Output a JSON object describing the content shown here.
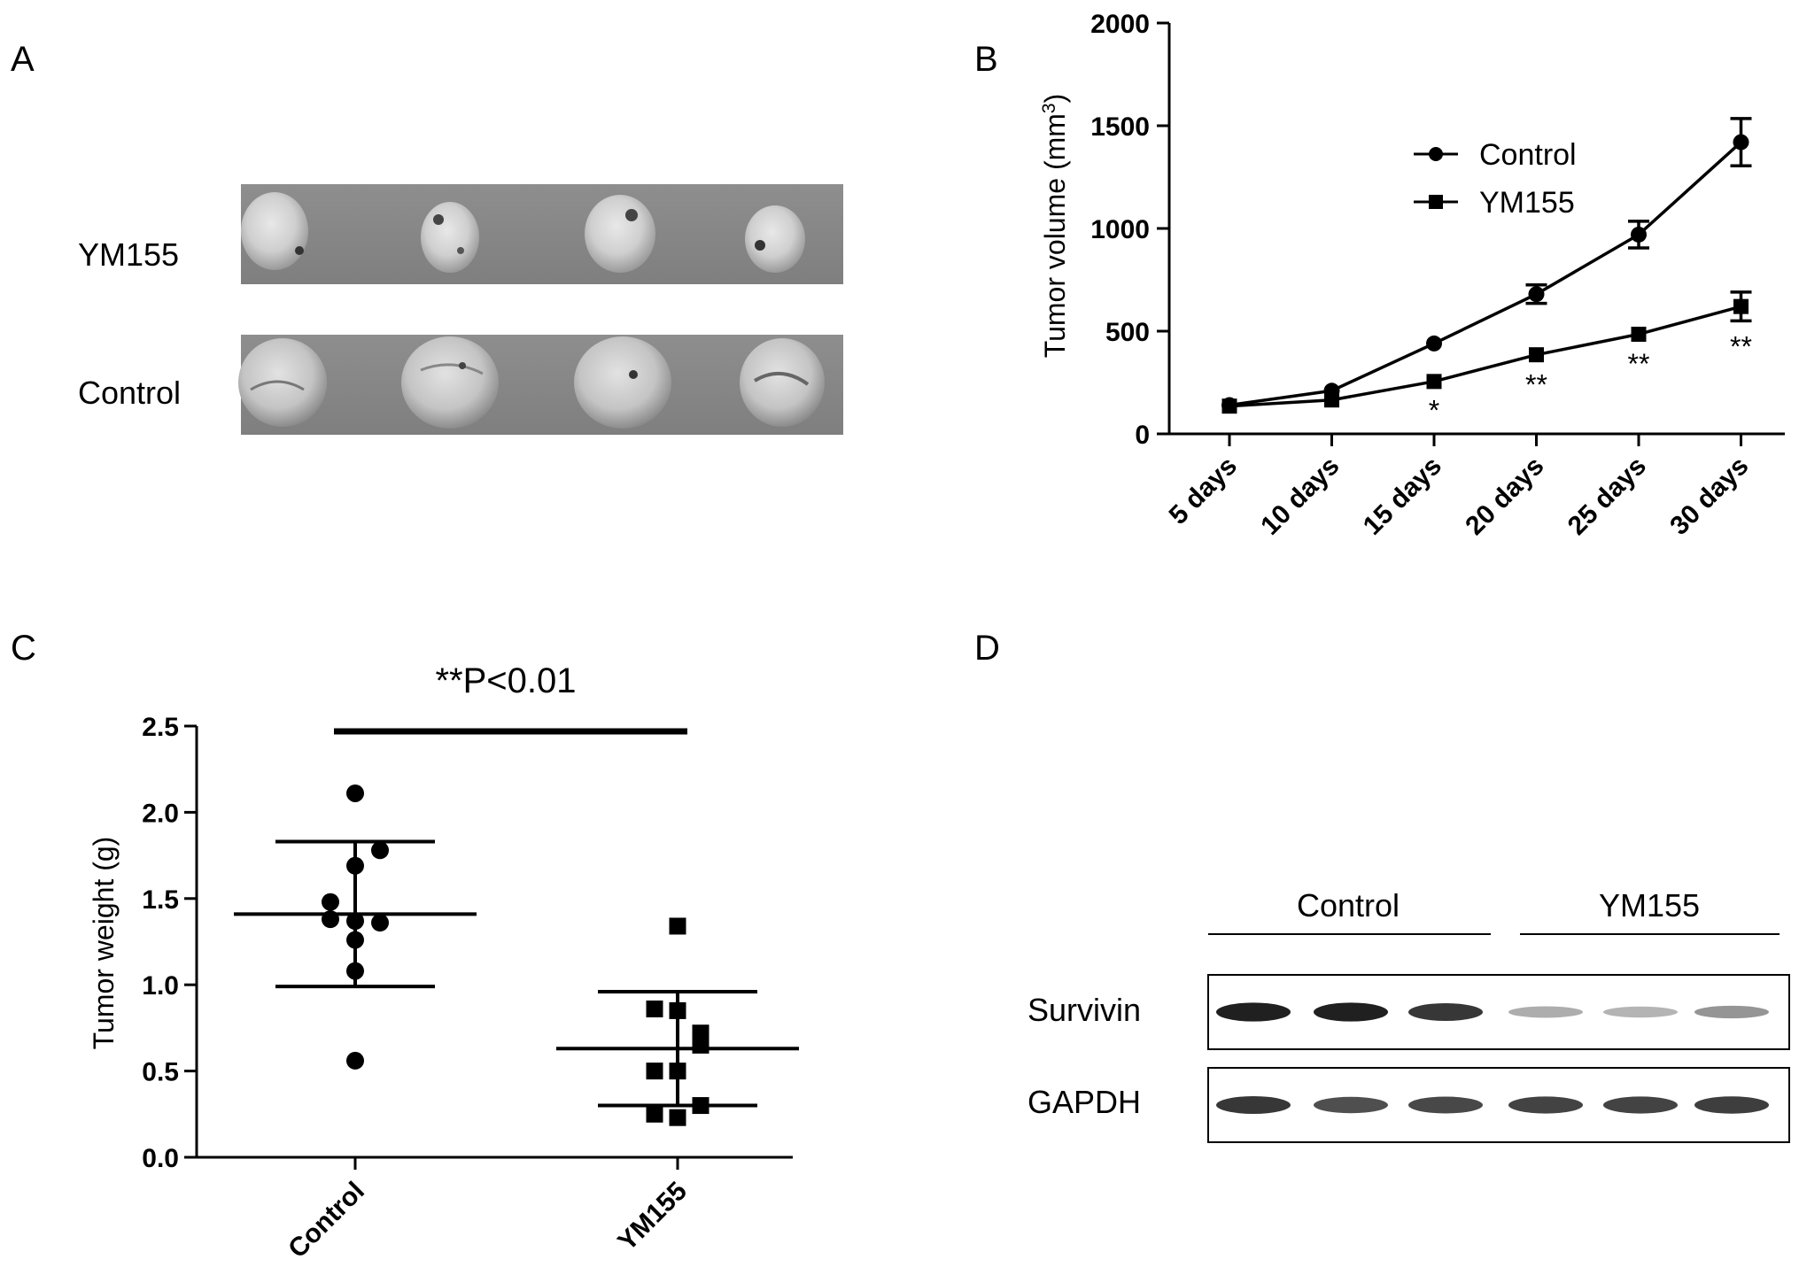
{
  "panel_labels": [
    "A",
    "B",
    "C",
    "D"
  ],
  "panel_a": {
    "rows": [
      {
        "label": "YM155",
        "tumor_count": 4
      },
      {
        "label": "Control",
        "tumor_count": 4
      }
    ]
  },
  "panel_b": {
    "ylabel_main": "Tumor volume  (mm",
    "ylabel_sup": "3",
    "ylabel_close": ")",
    "significance": [
      "",
      "",
      "*",
      "**",
      "**",
      "**"
    ]
  },
  "panel_c": {
    "annotation": "**P<0.01",
    "ylabel": "Tumor weight (g)"
  },
  "panel_d": {
    "group_labels": [
      "Control",
      "YM155"
    ],
    "row_labels": [
      "Survivin",
      "GAPDH"
    ],
    "survivin_intensity": [
      0.95,
      0.95,
      0.85,
      0.35,
      0.32,
      0.45
    ],
    "gapdh_intensity": [
      0.85,
      0.75,
      0.78,
      0.8,
      0.8,
      0.82
    ]
  },
  "chart_data": [
    {
      "type": "line",
      "panel": "B",
      "categories": [
        "5 days",
        "10 days",
        "15 days",
        "20 days",
        "25 days",
        "30 days"
      ],
      "series": [
        {
          "name": "Control",
          "marker": "circle",
          "values": [
            140,
            210,
            440,
            680,
            970,
            1420
          ],
          "error": [
            15,
            15,
            20,
            45,
            65,
            115
          ]
        },
        {
          "name": "YM155",
          "marker": "square",
          "values": [
            135,
            165,
            255,
            385,
            485,
            620
          ],
          "error": [
            10,
            10,
            15,
            20,
            20,
            70
          ]
        }
      ],
      "ylabel": "Tumor volume (mm3)",
      "ylim": [
        0,
        2000
      ],
      "yticks": [
        0,
        500,
        1000,
        1500,
        2000
      ],
      "legend": "top-right",
      "grid": false
    },
    {
      "type": "scatter",
      "panel": "C",
      "categories": [
        "Control",
        "YM155"
      ],
      "series": [
        {
          "name": "Control",
          "marker": "circle",
          "values": [
            2.11,
            1.78,
            1.69,
            1.48,
            1.38,
            1.37,
            1.36,
            1.26,
            1.08,
            0.56
          ],
          "mean": 1.41,
          "sd": 0.42
        },
        {
          "name": "YM155",
          "marker": "square",
          "values": [
            1.34,
            0.86,
            0.85,
            0.72,
            0.65,
            0.5,
            0.5,
            0.3,
            0.25,
            0.23
          ],
          "mean": 0.63,
          "sd": 0.33
        }
      ],
      "ylabel": "Tumor weight (g)",
      "ylim": [
        0,
        2.5
      ],
      "yticks": [
        0.0,
        0.5,
        1.0,
        1.5,
        2.0,
        2.5
      ],
      "annotation": "**P<0.01",
      "grid": false
    }
  ]
}
